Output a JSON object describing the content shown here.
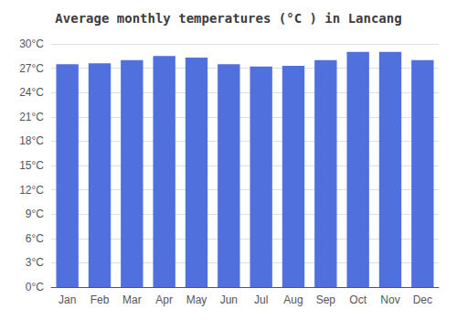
{
  "chart_data": {
    "type": "bar",
    "title": "Average monthly temperatures (°C ) in Lancang",
    "categories": [
      "Jan",
      "Feb",
      "Mar",
      "Apr",
      "May",
      "Jun",
      "Jul",
      "Aug",
      "Sep",
      "Oct",
      "Nov",
      "Dec"
    ],
    "values": [
      27.5,
      27.6,
      28.0,
      28.5,
      28.3,
      27.5,
      27.2,
      27.3,
      28.0,
      29.0,
      29.0,
      28.0
    ],
    "ylim": [
      0,
      30
    ],
    "yticks": [
      {
        "value": 0,
        "label": "0°C"
      },
      {
        "value": 3,
        "label": "3°C"
      },
      {
        "value": 6,
        "label": "6°C"
      },
      {
        "value": 9,
        "label": "9°C"
      },
      {
        "value": 12,
        "label": "12°C"
      },
      {
        "value": 15,
        "label": "15°C"
      },
      {
        "value": 18,
        "label": "18°C"
      },
      {
        "value": 21,
        "label": "21°C"
      },
      {
        "value": 24,
        "label": "24°C"
      },
      {
        "value": 27,
        "label": "27°C"
      },
      {
        "value": 30,
        "label": "30°C"
      }
    ],
    "grid": true
  }
}
